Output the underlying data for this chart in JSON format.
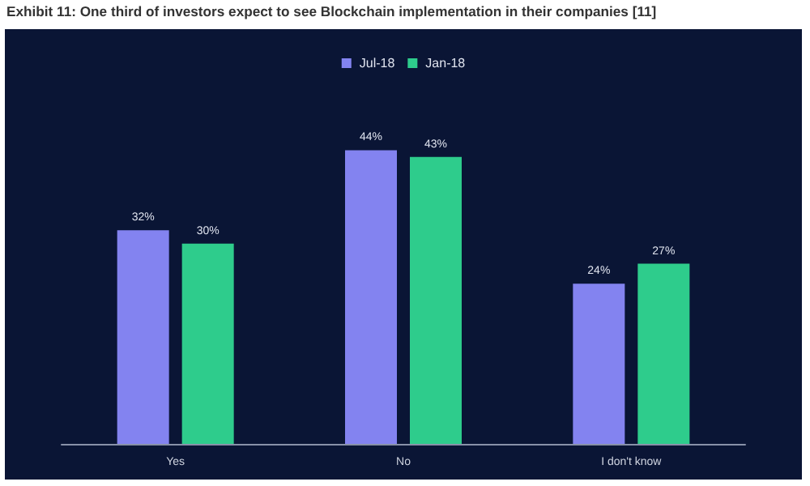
{
  "chart_data": {
    "type": "bar",
    "title": "Exhibit 11: One third of investors expect to see Blockchain implementation in their companies [11]",
    "categories": [
      "Yes",
      "No",
      "I don't know"
    ],
    "series": [
      {
        "name": "Jul-18",
        "color": "#8383f0",
        "values": [
          32,
          44,
          24
        ],
        "value_labels": [
          "32%",
          "44%",
          "24%"
        ]
      },
      {
        "name": "Jan-18",
        "color": "#2ecc8c",
        "values": [
          30,
          43,
          27
        ],
        "value_labels": [
          "30%",
          "43%",
          "27%"
        ]
      }
    ],
    "legend": "top"
  }
}
